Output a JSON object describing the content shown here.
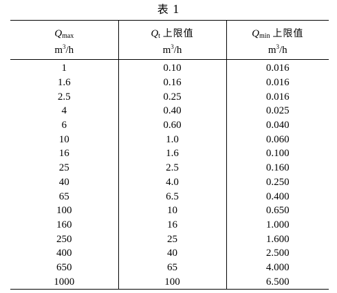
{
  "caption": {
    "word": "表",
    "number": "1"
  },
  "headers": {
    "col1": {
      "symbol": "Q",
      "subscript": "max",
      "suffix": "",
      "unit_prefix": "m",
      "unit_sup": "3",
      "unit_suffix": "/h"
    },
    "col2": {
      "symbol": "Q",
      "subscript": "t",
      "suffix": "上限值",
      "unit_prefix": "m",
      "unit_sup": "3",
      "unit_suffix": "/h"
    },
    "col3": {
      "symbol": "Q",
      "subscript": "min",
      "suffix": "上限值",
      "unit_prefix": "m",
      "unit_sup": "3",
      "unit_suffix": "/h"
    }
  },
  "rows": [
    [
      "1",
      "0.10",
      "0.016"
    ],
    [
      "1.6",
      "0.16",
      "0.016"
    ],
    [
      "2.5",
      "0.25",
      "0.016"
    ],
    [
      "4",
      "0.40",
      "0.025"
    ],
    [
      "6",
      "0.60",
      "0.040"
    ],
    [
      "10",
      "1.0",
      "0.060"
    ],
    [
      "16",
      "1.6",
      "0.100"
    ],
    [
      "25",
      "2.5",
      "0.160"
    ],
    [
      "40",
      "4.0",
      "0.250"
    ],
    [
      "65",
      "6.5",
      "0.400"
    ],
    [
      "100",
      "10",
      "0.650"
    ],
    [
      "160",
      "16",
      "1.000"
    ],
    [
      "250",
      "25",
      "1.600"
    ],
    [
      "400",
      "40",
      "2.500"
    ],
    [
      "650",
      "65",
      "4.000"
    ],
    [
      "1000",
      "100",
      "6.500"
    ]
  ]
}
